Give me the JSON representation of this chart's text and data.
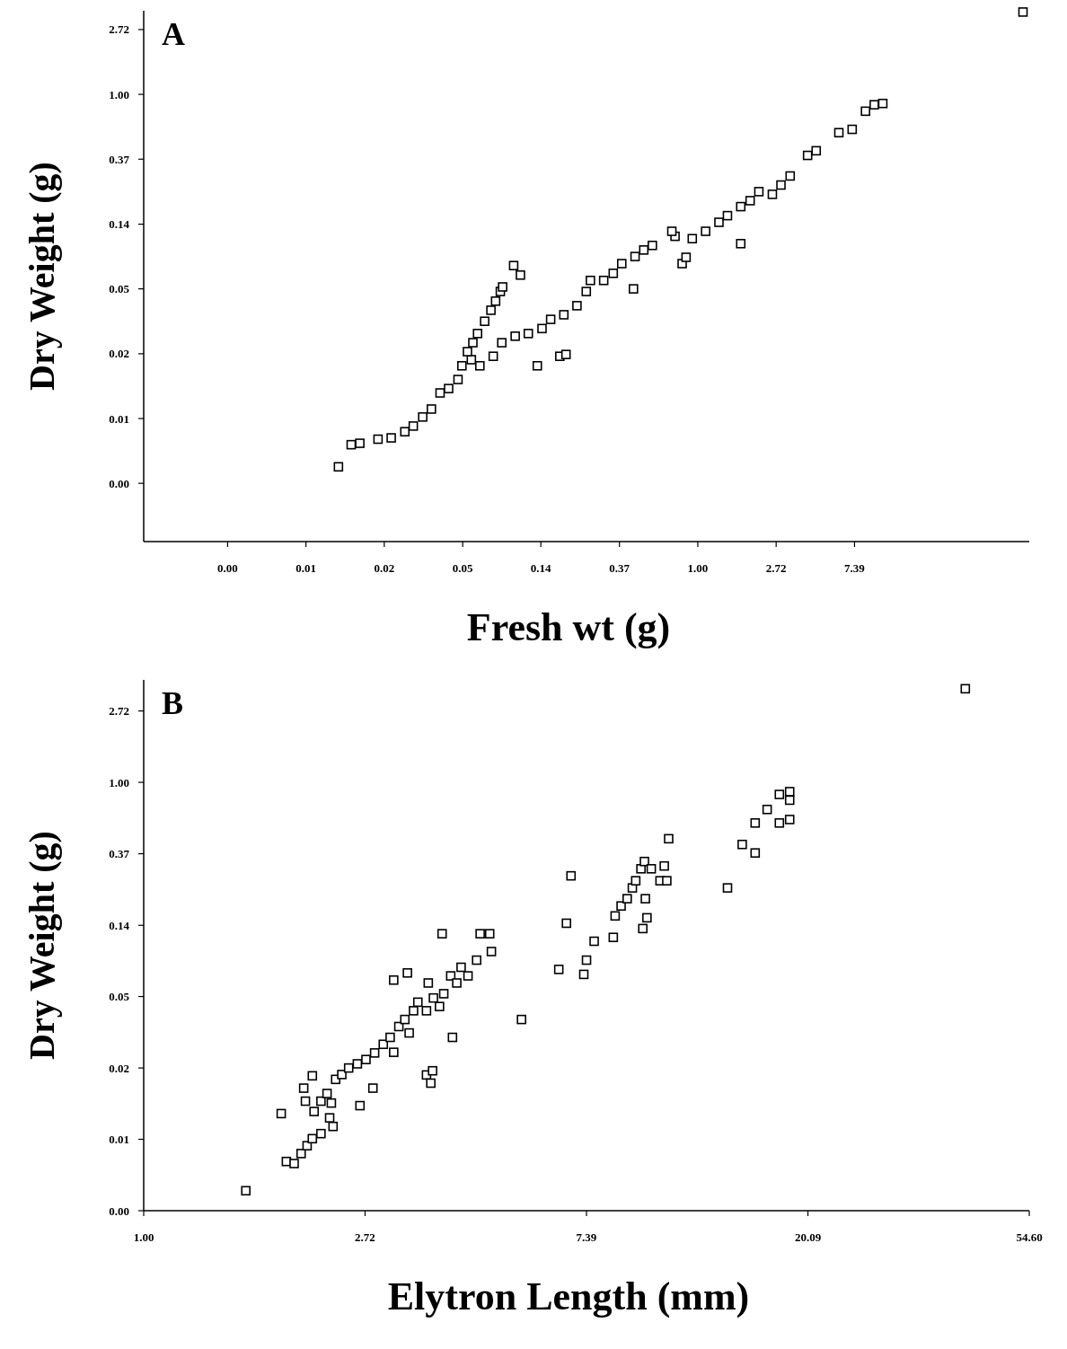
{
  "chart_data": [
    {
      "type": "scatter",
      "title": "A",
      "xlabel": "Fresh wt (g)",
      "ylabel": "Dry Weight (g)",
      "log": "xy",
      "marker": "square",
      "xlim": [
        0.00085,
        68.7
      ],
      "ylim": [
        0.00101,
        3.63
      ],
      "xticks": [
        {
          "value": 0.00248,
          "label": "0.00"
        },
        {
          "value": 0.00674,
          "label": "0.01"
        },
        {
          "value": 0.0183,
          "label": "0.02"
        },
        {
          "value": 0.0498,
          "label": "0.05"
        },
        {
          "value": 0.135,
          "label": "0.14"
        },
        {
          "value": 0.368,
          "label": "0.37"
        },
        {
          "value": 1,
          "label": "1.00"
        },
        {
          "value": 2.718,
          "label": "2.72"
        },
        {
          "value": 7.389,
          "label": "7.39"
        }
      ],
      "yticks": [
        {
          "value": 0.00248,
          "label": "0.00"
        },
        {
          "value": 0.00674,
          "label": "0.01"
        },
        {
          "value": 0.0183,
          "label": "0.02"
        },
        {
          "value": 0.0498,
          "label": "0.05"
        },
        {
          "value": 0.135,
          "label": "0.14"
        },
        {
          "value": 0.368,
          "label": "0.37"
        },
        {
          "value": 1,
          "label": "1.00"
        },
        {
          "value": 2.718,
          "label": "2.72"
        }
      ],
      "series": [
        {
          "color": "#000000",
          "x": [
            0.0102,
            0.012,
            0.0134,
            0.0169,
            0.02,
            0.0238,
            0.0265,
            0.0299,
            0.0334,
            0.0373,
            0.0416,
            0.0469,
            0.0493,
            0.0556,
            0.0529,
            0.0567,
            0.0602,
            0.0659,
            0.0714,
            0.0758,
            0.0805,
            0.0829,
            0.0954,
            0.104,
            0.062,
            0.0735,
            0.082,
            0.0973,
            0.115,
            0.137,
            0.153,
            0.181,
            0.214,
            0.241,
            0.254,
            0.301,
            0.34,
            0.379,
            0.449,
            0.502,
            0.56,
            0.748,
            0.932,
            1.105,
            1.31,
            1.46,
            1.73,
            1.95,
            2.18,
            2.59,
            2.89,
            3.25,
            4.06,
            4.53,
            6.05,
            7.17,
            8.5,
            9.5,
            10.6,
            0.129,
            0.172,
            0.186,
            0.44,
            0.819,
            0.861,
            1.73,
            0.718,
            63.4
          ],
          "values": [
            0.0032,
            0.0045,
            0.0046,
            0.0049,
            0.005,
            0.0055,
            0.006,
            0.0069,
            0.0078,
            0.01,
            0.0107,
            0.0123,
            0.0152,
            0.0167,
            0.0189,
            0.0217,
            0.025,
            0.0302,
            0.0358,
            0.0412,
            0.0478,
            0.0513,
            0.0713,
            0.0616,
            0.0152,
            0.0176,
            0.0217,
            0.024,
            0.025,
            0.027,
            0.0311,
            0.0334,
            0.0384,
            0.0478,
            0.0567,
            0.0567,
            0.0633,
            0.0735,
            0.082,
            0.0907,
            0.0973,
            0.112,
            0.108,
            0.121,
            0.139,
            0.154,
            0.177,
            0.194,
            0.223,
            0.214,
            0.247,
            0.284,
            0.39,
            0.419,
            0.554,
            0.583,
            0.771,
            0.852,
            0.869,
            0.0152,
            0.0176,
            0.0181,
            0.0498,
            0.0735,
            0.081,
            0.1,
            0.121,
            3.56
          ]
        }
      ]
    },
    {
      "type": "scatter",
      "title": "B",
      "xlabel": "Elytron Length (mm)",
      "ylabel": "Dry Weight (g)",
      "log": "xy",
      "marker": "square",
      "xlim": [
        1,
        54.6
      ],
      "ylim": [
        0.00248,
        4.2
      ],
      "xticks": [
        {
          "value": 1,
          "label": "1.00"
        },
        {
          "value": 2.718,
          "label": "2.72"
        },
        {
          "value": 7.389,
          "label": "7.39"
        },
        {
          "value": 20.09,
          "label": "20.09"
        },
        {
          "value": 54.6,
          "label": "54.60"
        }
      ],
      "yticks": [
        {
          "value": 0.00248,
          "label": "0.00"
        },
        {
          "value": 0.00674,
          "label": "0.01"
        },
        {
          "value": 0.0183,
          "label": "0.02"
        },
        {
          "value": 0.0498,
          "label": "0.05"
        },
        {
          "value": 0.135,
          "label": "0.14"
        },
        {
          "value": 0.368,
          "label": "0.37"
        },
        {
          "value": 1,
          "label": "1.00"
        },
        {
          "value": 2.718,
          "label": "2.72"
        }
      ],
      "series": [
        {
          "color": "#000000",
          "x": [
            1.586,
            1.861,
            1.905,
            1.973,
            2.036,
            2.092,
            2.142,
            2.227,
            2.316,
            2.352,
            2.06,
            2.076,
            2.142,
            2.159,
            2.227,
            2.289,
            2.334,
            2.38,
            2.447,
            2.524,
            2.625,
            2.656,
            2.729,
            2.816,
            2.838,
            2.951,
            3.044,
            3.093,
            3.166,
            3.253,
            3.317,
            3.383,
            3.093,
            3.291,
            3.45,
            3.587,
            3.616,
            3.701,
            3.804,
            3.878,
            3.849,
            4.002,
            4.113,
            4.194,
            4.327,
            4.499,
            4.571,
            4.772,
            4.809,
            3.587,
            3.687,
            3.658,
            4.034,
            5.51,
            6.52,
            6.75,
            6.89,
            7.3,
            7.39,
            7.65,
            8.34,
            8.41,
            8.64,
            8.88,
            9.09,
            9.23,
            9.45,
            9.6,
            9.9,
            10.3,
            10.5,
            10.62,
            10.71,
            9.53,
            9.64,
            9.71,
            13.97,
            14.93,
            15.83,
            15.83,
            16.71,
            17.66,
            17.66,
            18.5,
            18.5,
            18.5,
            40.9
          ],
          "values": [
            0.00328,
            0.00966,
            0.00494,
            0.0048,
            0.00552,
            0.00616,
            0.0068,
            0.0073,
            0.0091,
            0.00807,
            0.0138,
            0.0115,
            0.0164,
            0.00995,
            0.0115,
            0.0128,
            0.0112,
            0.0156,
            0.0167,
            0.0183,
            0.0194,
            0.0108,
            0.0206,
            0.0138,
            0.0226,
            0.0255,
            0.0281,
            0.0228,
            0.0327,
            0.0361,
            0.0299,
            0.0408,
            0.0627,
            0.0693,
            0.046,
            0.0408,
            0.0602,
            0.0488,
            0.0433,
            0.0518,
            0.12,
            0.0665,
            0.0602,
            0.075,
            0.0665,
            0.0829,
            0.12,
            0.12,
            0.0935,
            0.0166,
            0.0176,
            0.0148,
            0.0281,
            0.0361,
            0.0728,
            0.139,
            0.27,
            0.0679,
            0.0829,
            0.108,
            0.114,
            0.154,
            0.177,
            0.196,
            0.228,
            0.252,
            0.298,
            0.33,
            0.298,
            0.252,
            0.31,
            0.252,
            0.454,
            0.129,
            0.196,
            0.15,
            0.228,
            0.419,
            0.566,
            0.372,
            0.684,
            0.566,
            0.844,
            0.594,
            0.878,
            0.779,
            3.71
          ]
        }
      ]
    }
  ]
}
